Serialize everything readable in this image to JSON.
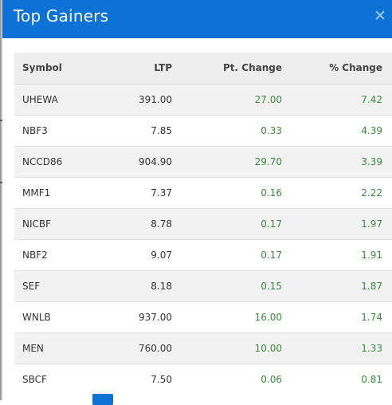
{
  "modal": {
    "title": "Top Gainers",
    "close_glyph": "✕",
    "close_icon": "close-icon"
  },
  "table": {
    "columns": [
      "Symbol",
      "LTP",
      "Pt. Change",
      "% Change"
    ],
    "rows": [
      {
        "symbol": "UHEWA",
        "ltp": "391.00",
        "pt_change": "27.00",
        "pct_change": "7.42"
      },
      {
        "symbol": "NBF3",
        "ltp": "7.85",
        "pt_change": "0.33",
        "pct_change": "4.39"
      },
      {
        "symbol": "NCCD86",
        "ltp": "904.90",
        "pt_change": "29.70",
        "pct_change": "3.39"
      },
      {
        "symbol": "MMF1",
        "ltp": "7.37",
        "pt_change": "0.16",
        "pct_change": "2.22"
      },
      {
        "symbol": "NICBF",
        "ltp": "8.78",
        "pt_change": "0.17",
        "pct_change": "1.97"
      },
      {
        "symbol": "NBF2",
        "ltp": "9.07",
        "pt_change": "0.17",
        "pct_change": "1.91"
      },
      {
        "symbol": "SEF",
        "ltp": "8.18",
        "pt_change": "0.15",
        "pct_change": "1.87"
      },
      {
        "symbol": "WNLB",
        "ltp": "937.00",
        "pt_change": "16.00",
        "pct_change": "1.74"
      },
      {
        "symbol": "MEN",
        "ltp": "760.00",
        "pt_change": "10.00",
        "pct_change": "1.33"
      },
      {
        "symbol": "SBCF",
        "ltp": "7.50",
        "pt_change": "0.06",
        "pct_change": "0.81"
      }
    ]
  },
  "colors": {
    "header": "#0d72d6",
    "positive": "#3b8a3e",
    "row_alt": "#f2f2f2"
  }
}
